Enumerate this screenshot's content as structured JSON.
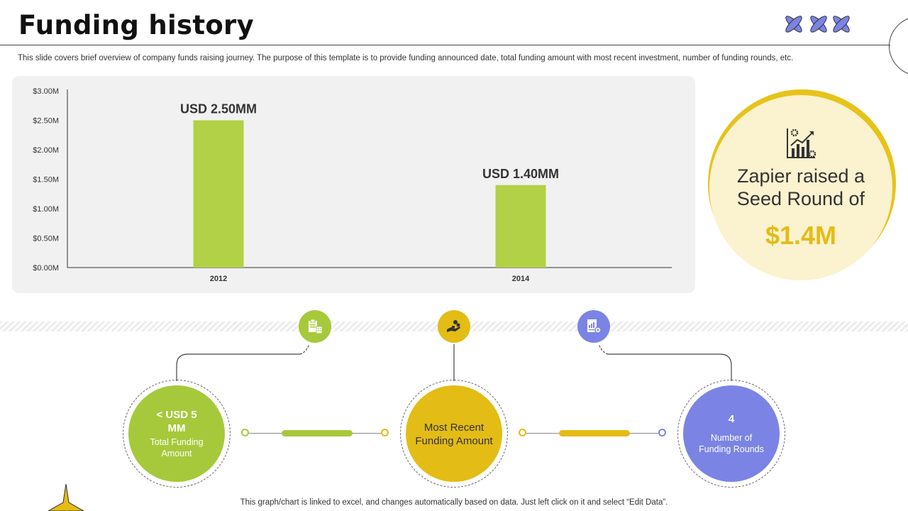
{
  "header": {
    "title": "Funding history",
    "subtitle": "This slide covers brief overview of company funds raising journey. The purpose of this template is to provide funding announced date, total funding amount with most recent investment, number of funding rounds, etc."
  },
  "chart_data": {
    "type": "bar",
    "categories": [
      "2012",
      "2014"
    ],
    "values": [
      2.5,
      1.4
    ],
    "data_labels": [
      "USD 2.50MM",
      "USD 1.40MM"
    ],
    "y_ticks": [
      "$0.00M",
      "$0.50M",
      "$1.00M",
      "$1.50M",
      "$2.00M",
      "$2.50M",
      "$3.00M"
    ],
    "ylim": [
      0,
      3
    ],
    "grid": false,
    "bar_color": "#b2d146"
  },
  "seed": {
    "text": "Zapier raised a Seed Round of",
    "amount": "$1.4M",
    "icon": "chart-gear-icon"
  },
  "metrics": [
    {
      "value": "< USD 5 MM",
      "label": "Total Funding Amount",
      "color": "#a6c93b",
      "icon": "clipboard-building-icon"
    },
    {
      "value": "",
      "label": "Most Recent Funding Amount",
      "color": "#e4bc16",
      "icon": "hand-coins-icon"
    },
    {
      "value": "4",
      "label": "Number of Funding Rounds",
      "color": "#7b84e4",
      "icon": "document-gear-icon"
    }
  ],
  "colors": {
    "green": "#a6c93b",
    "yellow": "#e4bc16",
    "blue": "#7b84e4"
  },
  "footer": "This graph/chart is linked to excel,  and changes automatically based on data. Just left click on it and select “Edit Data”."
}
